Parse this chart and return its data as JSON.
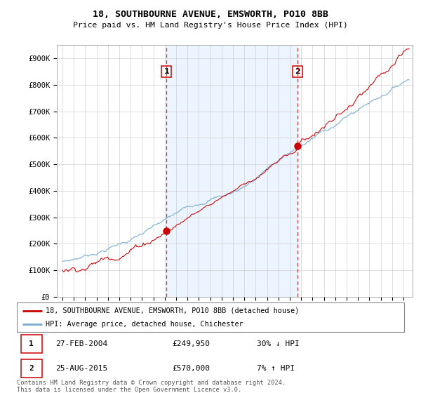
{
  "title": "18, SOUTHBOURNE AVENUE, EMSWORTH, PO10 8BB",
  "subtitle": "Price paid vs. HM Land Registry's House Price Index (HPI)",
  "ylabel_ticks": [
    "£0",
    "£100K",
    "£200K",
    "£300K",
    "£400K",
    "£500K",
    "£600K",
    "£700K",
    "£800K",
    "£900K"
  ],
  "ytick_vals": [
    0,
    100000,
    200000,
    300000,
    400000,
    500000,
    600000,
    700000,
    800000,
    900000
  ],
  "ylim": [
    0,
    950000
  ],
  "sale1_price": 249950,
  "sale2_price": 570000,
  "sale1_x": 2004.15,
  "sale2_x": 2015.65,
  "hpi_color": "#7aadd4",
  "hpi_fill_color": "#ddeeff",
  "price_color": "#cc0000",
  "vline_color": "#cc0000",
  "grid_color": "#cccccc",
  "legend_label1": "18, SOUTHBOURNE AVENUE, EMSWORTH, PO10 8BB (detached house)",
  "legend_label2": "HPI: Average price, detached house, Chichester",
  "footnote": "Contains HM Land Registry data © Crown copyright and database right 2024.\nThis data is licensed under the Open Government Licence v3.0.",
  "table_row1": [
    "1",
    "27-FEB-2004",
    "£249,950",
    "30% ↓ HPI"
  ],
  "table_row2": [
    "2",
    "25-AUG-2015",
    "£570,000",
    "7% ↑ HPI"
  ],
  "xmin": 1994.5,
  "xmax": 2025.8
}
